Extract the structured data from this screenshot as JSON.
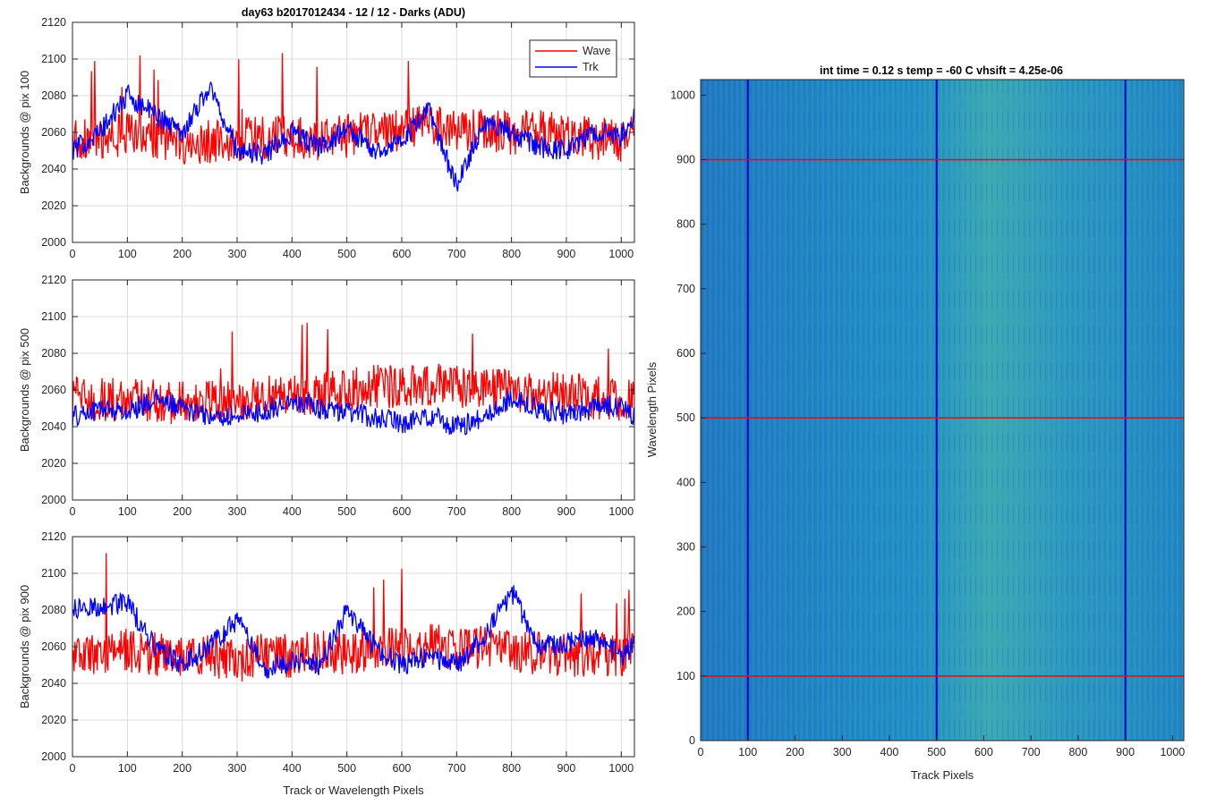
{
  "chart_data": [
    {
      "type": "line",
      "title": "day63 b2017012434 - 12 / 12 - Darks (ADU)",
      "xlabel": "",
      "ylabel": "Backgrounds @ pix 100",
      "xlim": [
        0,
        1024
      ],
      "ylim": [
        2000,
        2120
      ],
      "xticks": [
        0,
        100,
        200,
        300,
        400,
        500,
        600,
        700,
        800,
        900,
        1000
      ],
      "yticks": [
        2000,
        2020,
        2040,
        2060,
        2080,
        2100,
        2120
      ],
      "grid": true,
      "legend": {
        "placement": "top-right",
        "entries": [
          "Wave",
          "Trk"
        ]
      },
      "series": [
        {
          "name": "Wave",
          "color": "#ff0000",
          "x": [
            0,
            50,
            100,
            150,
            200,
            250,
            300,
            350,
            400,
            450,
            500,
            550,
            600,
            650,
            700,
            750,
            800,
            850,
            900,
            950,
            1000,
            1023
          ],
          "values": [
            2058,
            2055,
            2060,
            2058,
            2054,
            2055,
            2056,
            2057,
            2058,
            2056,
            2058,
            2060,
            2062,
            2064,
            2060,
            2062,
            2059,
            2061,
            2058,
            2057,
            2056,
            2058
          ]
        },
        {
          "name": "Trk",
          "color": "#0000ff",
          "x": [
            0,
            50,
            100,
            150,
            200,
            250,
            300,
            350,
            400,
            450,
            500,
            550,
            600,
            650,
            700,
            750,
            800,
            850,
            900,
            950,
            1000,
            1023
          ],
          "values": [
            2050,
            2060,
            2080,
            2070,
            2060,
            2085,
            2050,
            2048,
            2060,
            2052,
            2062,
            2050,
            2055,
            2072,
            2030,
            2066,
            2060,
            2052,
            2050,
            2060,
            2058,
            2070
          ]
        }
      ]
    },
    {
      "type": "line",
      "title": "",
      "xlabel": "",
      "ylabel": "Backgrounds @ pix 500",
      "xlim": [
        0,
        1024
      ],
      "ylim": [
        2000,
        2120
      ],
      "xticks": [
        0,
        100,
        200,
        300,
        400,
        500,
        600,
        700,
        800,
        900,
        1000
      ],
      "yticks": [
        2000,
        2020,
        2040,
        2060,
        2080,
        2100,
        2120
      ],
      "grid": true,
      "series": [
        {
          "name": "Wave",
          "color": "#ff0000",
          "x": [
            0,
            50,
            100,
            150,
            200,
            250,
            300,
            350,
            400,
            450,
            500,
            550,
            600,
            650,
            700,
            750,
            800,
            850,
            900,
            950,
            1000,
            1023
          ],
          "values": [
            2056,
            2055,
            2055,
            2054,
            2053,
            2054,
            2055,
            2056,
            2058,
            2058,
            2060,
            2062,
            2062,
            2063,
            2062,
            2061,
            2060,
            2059,
            2058,
            2056,
            2055,
            2054
          ]
        },
        {
          "name": "Trk",
          "color": "#0000ff",
          "x": [
            0,
            50,
            100,
            150,
            200,
            250,
            300,
            350,
            400,
            450,
            500,
            550,
            600,
            650,
            700,
            750,
            800,
            850,
            900,
            950,
            1000,
            1023
          ],
          "values": [
            2045,
            2050,
            2048,
            2055,
            2050,
            2045,
            2046,
            2048,
            2055,
            2050,
            2048,
            2045,
            2042,
            2046,
            2040,
            2045,
            2055,
            2050,
            2046,
            2050,
            2052,
            2046
          ]
        }
      ]
    },
    {
      "type": "line",
      "title": "",
      "xlabel": "Track or Wavelength Pixels",
      "ylabel": "Backgrounds @ pix 900",
      "xlim": [
        0,
        1024
      ],
      "ylim": [
        2000,
        2120
      ],
      "xticks": [
        0,
        100,
        200,
        300,
        400,
        500,
        600,
        700,
        800,
        900,
        1000
      ],
      "yticks": [
        2000,
        2020,
        2040,
        2060,
        2080,
        2100,
        2120
      ],
      "grid": true,
      "series": [
        {
          "name": "Wave",
          "color": "#ff0000",
          "x": [
            0,
            50,
            100,
            150,
            200,
            250,
            300,
            350,
            400,
            450,
            500,
            550,
            600,
            650,
            700,
            750,
            800,
            850,
            900,
            950,
            1000,
            1023
          ],
          "values": [
            2056,
            2055,
            2058,
            2056,
            2054,
            2055,
            2052,
            2056,
            2055,
            2058,
            2056,
            2060,
            2058,
            2062,
            2058,
            2060,
            2057,
            2056,
            2055,
            2056,
            2055,
            2056
          ]
        },
        {
          "name": "Trk",
          "color": "#0000ff",
          "x": [
            0,
            50,
            100,
            150,
            200,
            250,
            300,
            350,
            400,
            450,
            500,
            550,
            600,
            650,
            700,
            750,
            800,
            850,
            900,
            950,
            1000,
            1023
          ],
          "values": [
            2080,
            2082,
            2084,
            2060,
            2050,
            2060,
            2075,
            2048,
            2052,
            2050,
            2080,
            2060,
            2050,
            2055,
            2050,
            2065,
            2090,
            2060,
            2062,
            2065,
            2055,
            2060
          ]
        }
      ]
    },
    {
      "type": "heatmap",
      "title": "int time = 0.12 s    temp = -60 C    vhsift = 4.25e-06",
      "xlabel": "Track Pixels",
      "ylabel": "Wavelength Pixels",
      "xlim": [
        0,
        1024
      ],
      "ylim": [
        0,
        1024
      ],
      "xticks": [
        0,
        100,
        200,
        300,
        400,
        500,
        600,
        700,
        800,
        900,
        1000
      ],
      "yticks": [
        0,
        100,
        200,
        300,
        400,
        500,
        600,
        700,
        800,
        900,
        1000
      ],
      "colormap": {
        "low": "#1e73c8",
        "mid": "#21a3c0",
        "high": "#9cc95a"
      },
      "vertical_lines": {
        "color": "#0000c8",
        "x": [
          100,
          500,
          900
        ]
      },
      "horizontal_lines": {
        "color": "#ff0000",
        "y": [
          100,
          500,
          900
        ]
      }
    }
  ]
}
